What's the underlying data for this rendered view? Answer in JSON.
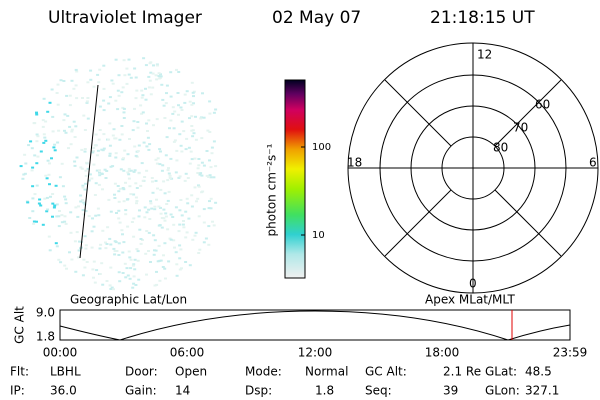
{
  "header": {
    "title": "Ultraviolet Imager",
    "date": "02 May 07",
    "time": "21:18:15 UT"
  },
  "colorbar": {
    "label": "photon cm⁻²s⁻¹",
    "ticks": [
      "100",
      "10"
    ]
  },
  "polar": {
    "hours": {
      "top": "12",
      "left": "18",
      "right": "6",
      "bottom": "0"
    },
    "latitudes": [
      "60",
      "70",
      "80"
    ]
  },
  "timeline": {
    "left_title": "Geographic Lat/Lon",
    "right_title": "Apex MLat/MLT",
    "axis_label": "GC Alt",
    "yticks": [
      "9.0",
      "1.8"
    ],
    "xticks": [
      "00:00",
      "06:00",
      "12:00",
      "18:00",
      "23:59"
    ]
  },
  "status": [
    [
      {
        "label": "Flt:",
        "value": "LBHL"
      },
      {
        "label": "Door:",
        "value": "Open"
      },
      {
        "label": "Mode:",
        "value": "Normal"
      },
      {
        "label": "GC Alt:",
        "value": "2.1 Re"
      },
      {
        "label": "GLat:",
        "value": "48.5"
      }
    ],
    [
      {
        "label": "IP:",
        "value": "36.0"
      },
      {
        "label": "Gain:",
        "value": "14"
      },
      {
        "label": "Dsp:",
        "value": "1.8"
      },
      {
        "label": "Seq:",
        "value": "39"
      },
      {
        "label": "GLon:",
        "value": "327.1"
      }
    ]
  ]
}
